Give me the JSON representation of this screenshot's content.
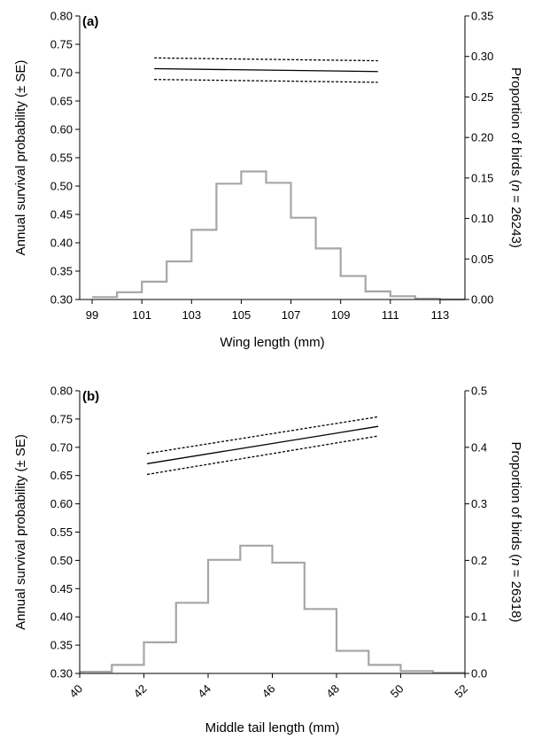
{
  "chart_data": [
    {
      "type": "line",
      "panel_label": "(a)",
      "xlabel": "Wing length (mm)",
      "ylabel_left": "Annual survival probability (± SE)",
      "ylabel_right": "Proportion of birds (n = 26243)",
      "ylabel_right_parts": [
        "Proportion of birds (",
        "n",
        " = 26243)"
      ],
      "xlim": [
        98.5,
        114
      ],
      "xticks": [
        99,
        101,
        103,
        105,
        107,
        109,
        111,
        113
      ],
      "xtick_labels": [
        "99",
        "101",
        "103",
        "105",
        "107",
        "109",
        "111",
        "113"
      ],
      "xtick_rotate": false,
      "ylim_left": [
        0.3,
        0.8
      ],
      "yticks_left": [
        0.3,
        0.35,
        0.4,
        0.45,
        0.5,
        0.55,
        0.6,
        0.65,
        0.7,
        0.75,
        0.8
      ],
      "ytick_labels_left": [
        "0.30",
        "0.35",
        "0.40",
        "0.45",
        "0.50",
        "0.55",
        "0.60",
        "0.65",
        "0.70",
        "0.75",
        "0.80"
      ],
      "ylim_right": [
        0,
        0.35
      ],
      "yticks_right": [
        0,
        0.05,
        0.1,
        0.15,
        0.2,
        0.25,
        0.3,
        0.35
      ],
      "ytick_labels_right": [
        "0.00",
        "0.05",
        "0.10",
        "0.15",
        "0.20",
        "0.25",
        "0.30",
        "0.35"
      ],
      "survival": {
        "x": [
          101.5,
          110.5
        ],
        "mean": [
          0.707,
          0.702
        ],
        "upper": [
          0.726,
          0.721
        ],
        "lower": [
          0.688,
          0.683
        ]
      },
      "histogram": {
        "bin_edges": [
          99,
          100,
          101,
          102,
          103,
          104,
          105,
          106,
          107,
          108,
          109,
          110,
          111,
          112,
          113,
          114
        ],
        "proportions": [
          0.003,
          0.009,
          0.022,
          0.047,
          0.086,
          0.143,
          0.158,
          0.144,
          0.101,
          0.063,
          0.029,
          0.01,
          0.004,
          0.001,
          0.0
        ]
      }
    },
    {
      "type": "line",
      "panel_label": "(b)",
      "xlabel": "Middle tail length (mm)",
      "ylabel_left": "Annual survival probability (± SE)",
      "ylabel_right": "Proportion of birds (n = 26318)",
      "ylabel_right_parts": [
        "Proportion of birds (",
        "n",
        " = 26318)"
      ],
      "xlim": [
        40,
        52
      ],
      "xticks": [
        40,
        42,
        44,
        46,
        48,
        50,
        52
      ],
      "xtick_labels": [
        "40",
        "42",
        "44",
        "46",
        "48",
        "50",
        "52"
      ],
      "xtick_rotate": true,
      "ylim_left": [
        0.3,
        0.8
      ],
      "yticks_left": [
        0.3,
        0.35,
        0.4,
        0.45,
        0.5,
        0.55,
        0.6,
        0.65,
        0.7,
        0.75,
        0.8
      ],
      "ytick_labels_left": [
        "0.30",
        "0.35",
        "0.40",
        "0.45",
        "0.50",
        "0.55",
        "0.60",
        "0.65",
        "0.70",
        "0.75",
        "0.80"
      ],
      "ylim_right": [
        0,
        0.5
      ],
      "yticks_right": [
        0,
        0.1,
        0.2,
        0.3,
        0.4,
        0.5
      ],
      "ytick_labels_right": [
        "0.0",
        "0.1",
        "0.2",
        "0.3",
        "0.4",
        "0.5"
      ],
      "survival": {
        "x": [
          42.1,
          49.3
        ],
        "mean": [
          0.671,
          0.737
        ],
        "upper": [
          0.689,
          0.754
        ],
        "lower": [
          0.652,
          0.72
        ]
      },
      "histogram": {
        "bin_edges": [
          40,
          41,
          42,
          43,
          44,
          45,
          46,
          47,
          48,
          49,
          50,
          51,
          52
        ],
        "proportions": [
          0.003,
          0.015,
          0.055,
          0.125,
          0.201,
          0.226,
          0.196,
          0.114,
          0.04,
          0.015,
          0.004,
          0.001
        ]
      }
    }
  ]
}
